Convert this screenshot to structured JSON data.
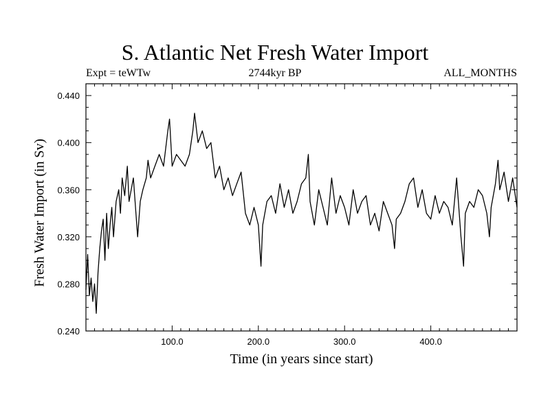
{
  "chart_data": {
    "type": "line",
    "title": "S. Atlantic Net Fresh Water Import",
    "subtitle_left": "Expt = teWTw",
    "subtitle_center": "2744kyr BP",
    "subtitle_right": "ALL_MONTHS",
    "xlabel": "Time (in years since start)",
    "ylabel": "Fresh Water Import (in Sv)",
    "xlim": [
      0,
      500
    ],
    "ylim": [
      0.24,
      0.45
    ],
    "x_ticks": [
      100,
      200,
      300,
      400
    ],
    "x_tick_labels": [
      "100.0",
      "200.0",
      "300.0",
      "400.0"
    ],
    "y_ticks": [
      0.24,
      0.28,
      0.32,
      0.36,
      0.4,
      0.44
    ],
    "y_tick_labels": [
      "0.240",
      "0.280",
      "0.320",
      "0.360",
      "0.400",
      "0.440"
    ],
    "grid": false,
    "series": [
      {
        "name": "fresh water import",
        "x": [
          0,
          2,
          4,
          6,
          8,
          10,
          12,
          14,
          16,
          18,
          20,
          22,
          24,
          26,
          28,
          30,
          32,
          35,
          38,
          40,
          42,
          45,
          48,
          50,
          55,
          60,
          63,
          66,
          70,
          72,
          75,
          80,
          85,
          90,
          95,
          97,
          100,
          105,
          110,
          115,
          120,
          124,
          126,
          130,
          135,
          140,
          145,
          150,
          155,
          160,
          165,
          170,
          175,
          180,
          185,
          190,
          195,
          200,
          203,
          205,
          210,
          215,
          220,
          225,
          230,
          235,
          240,
          245,
          250,
          255,
          258,
          260,
          265,
          270,
          275,
          280,
          285,
          290,
          295,
          300,
          305,
          310,
          315,
          320,
          325,
          330,
          335,
          340,
          345,
          350,
          355,
          358,
          360,
          365,
          370,
          375,
          380,
          385,
          390,
          395,
          400,
          405,
          410,
          415,
          420,
          425,
          430,
          435,
          438,
          440,
          445,
          450,
          455,
          460,
          465,
          468,
          470,
          475,
          478,
          480,
          485,
          490,
          495,
          500
        ],
        "values": [
          0.275,
          0.305,
          0.27,
          0.285,
          0.265,
          0.28,
          0.255,
          0.29,
          0.31,
          0.325,
          0.335,
          0.3,
          0.34,
          0.31,
          0.33,
          0.345,
          0.32,
          0.35,
          0.36,
          0.34,
          0.37,
          0.355,
          0.38,
          0.35,
          0.37,
          0.32,
          0.35,
          0.36,
          0.37,
          0.385,
          0.37,
          0.38,
          0.39,
          0.38,
          0.41,
          0.42,
          0.38,
          0.39,
          0.385,
          0.38,
          0.39,
          0.41,
          0.425,
          0.4,
          0.41,
          0.395,
          0.4,
          0.37,
          0.38,
          0.36,
          0.37,
          0.355,
          0.365,
          0.375,
          0.34,
          0.33,
          0.345,
          0.33,
          0.295,
          0.33,
          0.35,
          0.355,
          0.34,
          0.365,
          0.345,
          0.36,
          0.34,
          0.35,
          0.365,
          0.37,
          0.39,
          0.35,
          0.33,
          0.36,
          0.345,
          0.33,
          0.37,
          0.34,
          0.355,
          0.345,
          0.33,
          0.36,
          0.34,
          0.35,
          0.355,
          0.33,
          0.34,
          0.325,
          0.35,
          0.34,
          0.33,
          0.31,
          0.335,
          0.34,
          0.35,
          0.365,
          0.37,
          0.345,
          0.36,
          0.34,
          0.335,
          0.355,
          0.34,
          0.35,
          0.345,
          0.33,
          0.37,
          0.32,
          0.295,
          0.34,
          0.35,
          0.345,
          0.36,
          0.355,
          0.34,
          0.32,
          0.345,
          0.365,
          0.385,
          0.36,
          0.375,
          0.35,
          0.37,
          0.345
        ]
      }
    ]
  }
}
